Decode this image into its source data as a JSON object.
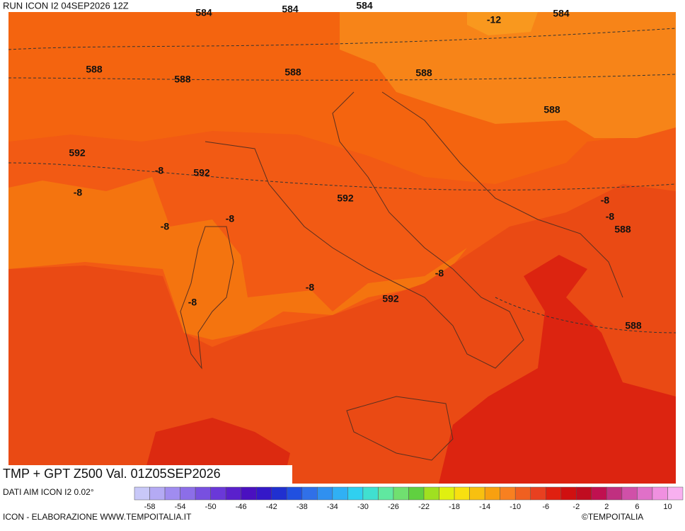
{
  "header": {
    "run": "RUN ICON I2 04SEP2026 12Z"
  },
  "map": {
    "contour_labels": [
      "584",
      "584",
      "584",
      "584",
      "-12",
      "588",
      "588",
      "588",
      "588",
      "588",
      "592",
      "-8",
      "592",
      "-8",
      "592",
      "-8",
      "-8",
      "-8",
      "-8",
      "588",
      "-8",
      "-8",
      "592",
      "-8",
      "588"
    ]
  },
  "footer": {
    "title": "TMP + GPT Z500 Val. 01Z05SEP2026",
    "source": "DATI AIM ICON I2 0.02°",
    "credit": "ICON - ELABORAZIONE WWW.TEMPOITALIA.IT",
    "brand": "©TEMPOITALIA"
  },
  "colorbar": {
    "labels": [
      -58,
      -54,
      -50,
      -46,
      -42,
      -38,
      -34,
      -30,
      -26,
      -22,
      -18,
      -14,
      -10,
      -6,
      -2,
      2,
      6,
      10
    ]
  }
}
